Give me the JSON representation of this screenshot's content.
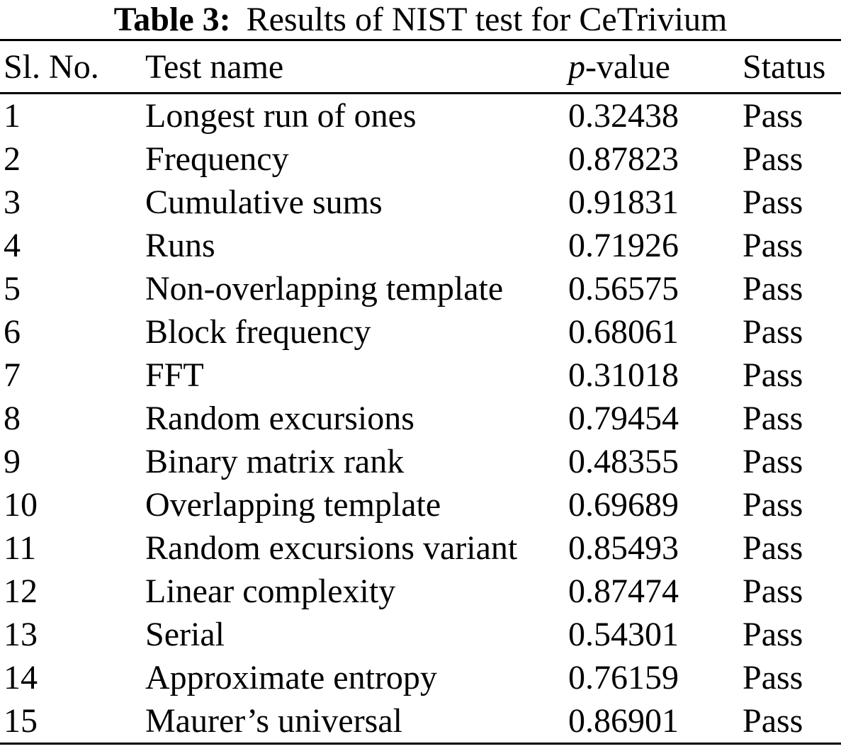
{
  "title": {
    "label": "Table 3:",
    "text": "Results of NIST test for CeTrivium"
  },
  "header": {
    "col_no": "Sl. No.",
    "col_name": "Test name",
    "col_p_italic": "p",
    "col_p_rest": "-value",
    "col_status": "Status"
  },
  "rows": [
    {
      "no": "1",
      "name": "Longest run of ones",
      "p": "0.32438",
      "status": "Pass"
    },
    {
      "no": "2",
      "name": "Frequency",
      "p": "0.87823",
      "status": "Pass"
    },
    {
      "no": "3",
      "name": "Cumulative sums",
      "p": "0.91831",
      "status": "Pass"
    },
    {
      "no": "4",
      "name": "Runs",
      "p": "0.71926",
      "status": "Pass"
    },
    {
      "no": "5",
      "name": "Non-overlapping template",
      "p": "0.56575",
      "status": "Pass"
    },
    {
      "no": "6",
      "name": "Block frequency",
      "p": "0.68061",
      "status": "Pass"
    },
    {
      "no": "7",
      "name": "FFT",
      "p": "0.31018",
      "status": "Pass"
    },
    {
      "no": "8",
      "name": "Random excursions",
      "p": "0.79454",
      "status": "Pass"
    },
    {
      "no": "9",
      "name": "Binary matrix rank",
      "p": "0.48355",
      "status": "Pass"
    },
    {
      "no": "10",
      "name": "Overlapping template",
      "p": "0.69689",
      "status": "Pass"
    },
    {
      "no": "11",
      "name": "Random excursions variant",
      "p": "0.85493",
      "status": "Pass"
    },
    {
      "no": "12",
      "name": "Linear complexity",
      "p": "0.87474",
      "status": "Pass"
    },
    {
      "no": "13",
      "name": "Serial",
      "p": "0.54301",
      "status": "Pass"
    },
    {
      "no": "14",
      "name": "Approximate entropy",
      "p": "0.76159",
      "status": "Pass"
    },
    {
      "no": "15",
      "name": "Maurer’s universal",
      "p": "0.86901",
      "status": "Pass"
    }
  ]
}
